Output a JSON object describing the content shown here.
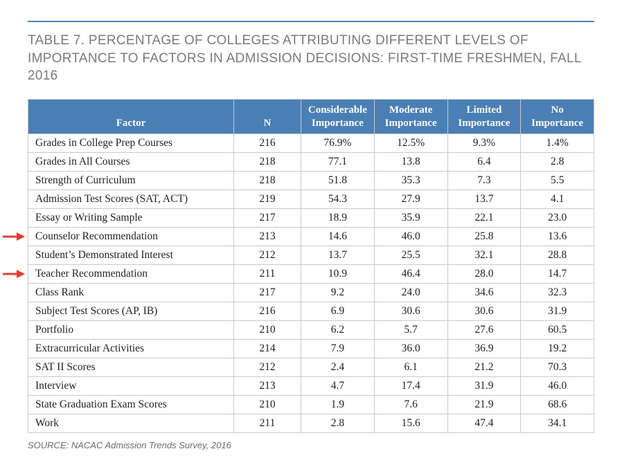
{
  "title": "TABLE 7. PERCENTAGE OF COLLEGES ATTRIBUTING DIFFERENT LEVELS OF IMPORTANCE TO FACTORS IN ADMISSION DECISIONS: FIRST-TIME FRESHMEN, FALL 2016",
  "source": "SOURCE: NACAC Admission Trends Survey, 2016",
  "colors": {
    "header_bg": "#4a7fb5",
    "header_text": "#ffffff",
    "border": "#c9c9c9",
    "title_text": "#7a7a7a",
    "rule": "#4a7fb5",
    "arrow": "#e63b2e"
  },
  "table": {
    "columns": [
      "Factor",
      "N",
      "Considerable Importance",
      "Moderate Importance",
      "Limited Importance",
      "No Importance"
    ],
    "rows": [
      {
        "factor": "Grades in College Prep Courses",
        "n": "216",
        "c1": "76.9%",
        "c2": "12.5%",
        "c3": "9.3%",
        "c4": "1.4%",
        "highlight": false
      },
      {
        "factor": "Grades in All Courses",
        "n": "218",
        "c1": "77.1",
        "c2": "13.8",
        "c3": "6.4",
        "c4": "2.8",
        "highlight": false
      },
      {
        "factor": "Strength of Curriculum",
        "n": "218",
        "c1": "51.8",
        "c2": "35.3",
        "c3": "7.3",
        "c4": "5.5",
        "highlight": false
      },
      {
        "factor": "Admission Test Scores (SAT, ACT)",
        "n": "219",
        "c1": "54.3",
        "c2": "27.9",
        "c3": "13.7",
        "c4": "4.1",
        "highlight": false
      },
      {
        "factor": "Essay or Writing Sample",
        "n": "217",
        "c1": "18.9",
        "c2": "35.9",
        "c3": "22.1",
        "c4": "23.0",
        "highlight": false
      },
      {
        "factor": "Counselor Recommendation",
        "n": "213",
        "c1": "14.6",
        "c2": "46.0",
        "c3": "25.8",
        "c4": "13.6",
        "highlight": true
      },
      {
        "factor": "Student’s Demonstrated Interest",
        "n": "212",
        "c1": "13.7",
        "c2": "25.5",
        "c3": "32.1",
        "c4": "28.8",
        "highlight": false
      },
      {
        "factor": "Teacher Recommendation",
        "n": "211",
        "c1": "10.9",
        "c2": "46.4",
        "c3": "28.0",
        "c4": "14.7",
        "highlight": true
      },
      {
        "factor": "Class Rank",
        "n": "217",
        "c1": "9.2",
        "c2": "24.0",
        "c3": "34.6",
        "c4": "32.3",
        "highlight": false
      },
      {
        "factor": "Subject Test Scores (AP, IB)",
        "n": "216",
        "c1": "6.9",
        "c2": "30.6",
        "c3": "30.6",
        "c4": "31.9",
        "highlight": false
      },
      {
        "factor": "Portfolio",
        "n": "210",
        "c1": "6.2",
        "c2": "5.7",
        "c3": "27.6",
        "c4": "60.5",
        "highlight": false
      },
      {
        "factor": "Extracurricular Activities",
        "n": "214",
        "c1": "7.9",
        "c2": "36.0",
        "c3": "36.9",
        "c4": "19.2",
        "highlight": false
      },
      {
        "factor": "SAT II Scores",
        "n": "212",
        "c1": "2.4",
        "c2": "6.1",
        "c3": "21.2",
        "c4": "70.3",
        "highlight": false
      },
      {
        "factor": "Interview",
        "n": "213",
        "c1": "4.7",
        "c2": "17.4",
        "c3": "31.9",
        "c4": "46.0",
        "highlight": false
      },
      {
        "factor": "State Graduation Exam Scores",
        "n": "210",
        "c1": "1.9",
        "c2": "7.6",
        "c3": "21.9",
        "c4": "68.6",
        "highlight": false
      },
      {
        "factor": "Work",
        "n": "211",
        "c1": "2.8",
        "c2": "15.6",
        "c3": "47.4",
        "c4": "34.1",
        "highlight": false
      }
    ]
  }
}
